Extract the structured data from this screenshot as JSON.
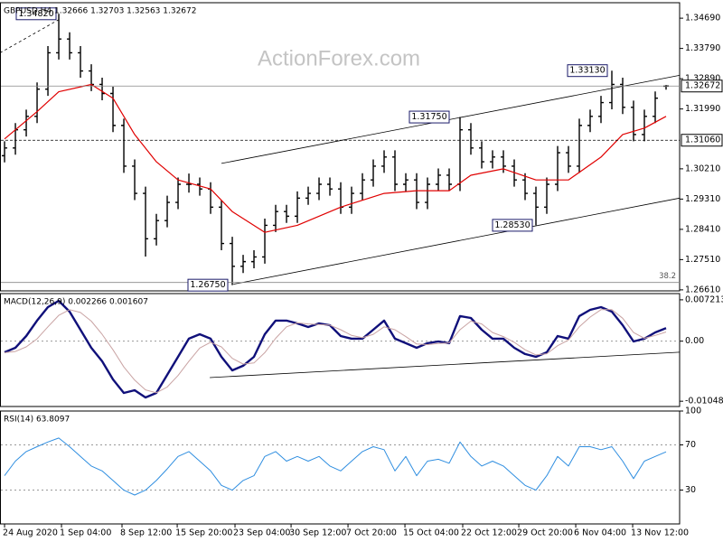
{
  "chart_data": [
    {
      "type": "ohlc",
      "title": "GBPUSD,H4  1.32666 1.32703 1.32563 1.32672",
      "color": "#000000",
      "xlim": [
        -0.42,
        62.25
      ],
      "ylim": [
        1.2658,
        1.3515
      ],
      "yticks": [
        {
          "value": 1.3469,
          "label": "1.34690"
        },
        {
          "value": 1.3379,
          "label": "1.33790"
        },
        {
          "value": 1.3289,
          "label": "1.32890"
        },
        {
          "value": 1.3199,
          "label": "1.31990"
        },
        {
          "value": 1.3021,
          "label": "1.30210"
        },
        {
          "value": 1.2931,
          "label": "1.29310"
        },
        {
          "value": 1.2841,
          "label": "1.28410"
        },
        {
          "value": 1.2751,
          "label": "1.27510"
        },
        {
          "value": 1.2661,
          "label": "1.26610"
        }
      ],
      "ohlc": [
        [
          1.306,
          1.3103,
          1.304,
          1.3083
        ],
        [
          1.3083,
          1.3157,
          1.3063,
          1.3137
        ],
        [
          1.3137,
          1.3197,
          1.3117,
          1.3177
        ],
        [
          1.3177,
          1.3278,
          1.3157,
          1.3258
        ],
        [
          1.3258,
          1.3386,
          1.3238,
          1.3366
        ],
        [
          1.3366,
          1.3482,
          1.3346,
          1.3407
        ],
        [
          1.3407,
          1.3427,
          1.3346,
          1.3366
        ],
        [
          1.3366,
          1.3386,
          1.3292,
          1.3312
        ],
        [
          1.3312,
          1.3332,
          1.3252,
          1.3272
        ],
        [
          1.3272,
          1.3292,
          1.3225,
          1.3245
        ],
        [
          1.3245,
          1.3265,
          1.313,
          1.315
        ],
        [
          1.315,
          1.317,
          1.3009,
          1.3029
        ],
        [
          1.3029,
          1.3049,
          1.2928,
          1.2948
        ],
        [
          1.2948,
          1.2968,
          1.276,
          1.2813
        ],
        [
          1.2813,
          1.2887,
          1.2793,
          1.2867
        ],
        [
          1.2867,
          1.2941,
          1.2847,
          1.2921
        ],
        [
          1.2921,
          1.2995,
          1.2901,
          1.2975
        ],
        [
          1.2975,
          1.3007,
          1.295,
          1.2975
        ],
        [
          1.2975,
          1.2995,
          1.2941,
          1.2961
        ],
        [
          1.2961,
          1.2981,
          1.2887,
          1.2907
        ],
        [
          1.2907,
          1.2927,
          1.2779,
          1.2799
        ],
        [
          1.2799,
          1.2819,
          1.2675,
          1.2731
        ],
        [
          1.2731,
          1.2765,
          1.2711,
          1.2745
        ],
        [
          1.2745,
          1.2779,
          1.2725,
          1.2759
        ],
        [
          1.2759,
          1.2873,
          1.2739,
          1.2853
        ],
        [
          1.2853,
          1.2914,
          1.2833,
          1.2894
        ],
        [
          1.2894,
          1.2914,
          1.286,
          1.288
        ],
        [
          1.288,
          1.2954,
          1.286,
          1.2934
        ],
        [
          1.2934,
          1.2968,
          1.2914,
          1.2948
        ],
        [
          1.2948,
          1.2995,
          1.2928,
          1.2975
        ],
        [
          1.2975,
          1.2995,
          1.2941,
          1.2961
        ],
        [
          1.2961,
          1.2981,
          1.2887,
          1.2907
        ],
        [
          1.2907,
          1.2968,
          1.2887,
          1.2948
        ],
        [
          1.2948,
          1.3008,
          1.2928,
          1.2988
        ],
        [
          1.2988,
          1.3049,
          1.2968,
          1.3029
        ],
        [
          1.3029,
          1.3076,
          1.3009,
          1.3056
        ],
        [
          1.3056,
          1.3076,
          1.2955,
          1.2975
        ],
        [
          1.2975,
          1.3008,
          1.2955,
          1.2988
        ],
        [
          1.2988,
          1.3008,
          1.2901,
          1.2921
        ],
        [
          1.2921,
          1.2995,
          1.2901,
          1.2975
        ],
        [
          1.2975,
          1.3022,
          1.2955,
          1.3002
        ],
        [
          1.3002,
          1.3022,
          1.2955,
          1.2975
        ],
        [
          1.2975,
          1.3175,
          1.2955,
          1.3137
        ],
        [
          1.3137,
          1.3157,
          1.3063,
          1.3083
        ],
        [
          1.3083,
          1.3103,
          1.3022,
          1.3042
        ],
        [
          1.3042,
          1.3076,
          1.3022,
          1.3056
        ],
        [
          1.3056,
          1.3076,
          1.3009,
          1.3029
        ],
        [
          1.3029,
          1.3049,
          1.2968,
          1.2988
        ],
        [
          1.2988,
          1.3008,
          1.2928,
          1.2948
        ],
        [
          1.2948,
          1.2968,
          1.2853,
          1.2907
        ],
        [
          1.2907,
          1.2995,
          1.2887,
          1.2975
        ],
        [
          1.2975,
          1.3089,
          1.2955,
          1.3069
        ],
        [
          1.3069,
          1.3089,
          1.3009,
          1.3029
        ],
        [
          1.3029,
          1.317,
          1.3009,
          1.315
        ],
        [
          1.315,
          1.3197,
          1.313,
          1.3177
        ],
        [
          1.3177,
          1.3238,
          1.3157,
          1.3218
        ],
        [
          1.3218,
          1.3313,
          1.3198,
          1.3272
        ],
        [
          1.3272,
          1.3292,
          1.3184,
          1.3204
        ],
        [
          1.3204,
          1.3224,
          1.3103,
          1.3123
        ],
        [
          1.3123,
          1.3197,
          1.3103,
          1.3177
        ],
        [
          1.3177,
          1.3251,
          1.3157,
          1.3231
        ],
        [
          1.32666,
          1.32703,
          1.32563,
          1.32672
        ]
      ],
      "series": [
        {
          "color": "#e00000",
          "width": 1.2,
          "x": [
            0,
            3,
            5,
            8,
            10,
            12,
            14,
            16,
            19,
            21,
            24,
            27,
            31,
            35,
            38,
            41,
            43,
            46,
            49,
            52,
            55,
            57,
            59,
            61
          ],
          "values": [
            1.311,
            1.3191,
            1.325,
            1.3272,
            1.3231,
            1.3123,
            1.3042,
            1.2988,
            1.2961,
            1.2894,
            1.2832,
            1.2853,
            1.2907,
            1.2948,
            1.2956,
            1.2956,
            1.3002,
            1.3021,
            1.2988,
            1.2988,
            1.3056,
            1.3123,
            1.3142,
            1.3177
          ]
        }
      ],
      "trendlines": [
        {
          "x": [
            20,
            62.25
          ],
          "values": [
            1.3037,
            1.3299
          ],
          "dash": false
        },
        {
          "x": [
            21.1,
            62.25
          ],
          "values": [
            1.2678,
            1.2934
          ],
          "dash": false
        },
        {
          "x": [
            -0.42,
            5.25
          ],
          "values": [
            1.3366,
            1.3469
          ],
          "dash": true
        }
      ],
      "levels": [
        {
          "value": 1.32672,
          "label": "1.32672",
          "line": "solid",
          "tag": true
        },
        {
          "value": 1.3106,
          "label": "1.31060",
          "line": "dashed",
          "tag": true
        },
        {
          "value": 1.2683,
          "label": "38.2",
          "line": "solid",
          "tag": false
        }
      ],
      "annotations": [
        {
          "value": 1.3482,
          "label": "1.34820"
        },
        {
          "value": 1.3175,
          "label": "1.31750"
        },
        {
          "value": 1.3313,
          "label": "1.33130"
        },
        {
          "value": 1.2853,
          "label": "1.28530"
        },
        {
          "value": 1.2675,
          "label": "1.26750"
        }
      ],
      "watermark": "ActionForex.com"
    },
    {
      "type": "macd",
      "title": "MACD(12,26,9) 0.002266 0.001607",
      "xlim": [
        -0.42,
        62.25
      ],
      "ylim": [
        -0.0114,
        0.0083
      ],
      "yticks": [
        0.007213,
        {
          "value": 0,
          "label": "0.00"
        },
        -0.01048
      ],
      "dotted_levels": [
        0
      ],
      "series": [
        {
          "color": "#10107a",
          "width": 2.4,
          "values": [
            -0.00194,
            -0.00115,
            0.0009,
            0.00358,
            0.00594,
            0.00704,
            0.00515,
            0.002,
            -0.00115,
            -0.00351,
            -0.00667,
            -0.00903,
            -0.00856,
            -0.00982,
            -0.00903,
            -0.00588,
            -0.00273,
            0.00043,
            0.00121,
            0.00043,
            -0.00273,
            -0.00509,
            -0.0043,
            -0.00273,
            0.00121,
            0.00358,
            0.00358,
            0.0031,
            0.00247,
            0.0031,
            0.00279,
            0.0009,
            0.00043,
            0.00043,
            0.002,
            0.00358,
            0.00043,
            -0.00036,
            -0.00115,
            -0.00036,
            -5e-05,
            -0.00036,
            0.00437,
            0.00405,
            0.002,
            0.00043,
            0.00043,
            -0.00115,
            -0.00225,
            -0.00273,
            -0.00194,
            0.0009,
            0.00043,
            0.00437,
            0.00547,
            0.00594,
            0.00515,
            0.00279,
            -5e-05,
            0.00043,
            0.00153,
            0.002266
          ]
        },
        {
          "color": "#c9a3a3",
          "width": 1,
          "values": [
            -0.002,
            -0.0018,
            -0.001,
            0.0004,
            0.0025,
            0.0045,
            0.0055,
            0.005,
            0.0035,
            0.0012,
            -0.0015,
            -0.0045,
            -0.0068,
            -0.0085,
            -0.009,
            -0.008,
            -0.006,
            -0.0035,
            -0.0012,
            -0.0002,
            -0.001,
            -0.003,
            -0.004,
            -0.0038,
            -0.002,
            0.0005,
            0.0025,
            0.0032,
            0.003,
            0.0029,
            0.0028,
            0.002,
            0.001,
            0.0006,
            0.0012,
            0.0025,
            0.002,
            0.0008,
            -0.0005,
            -0.0006,
            -0.0004,
            -0.0003,
            0.002,
            0.0035,
            0.003,
            0.0015,
            0.0008,
            -0.0002,
            -0.0015,
            -0.0024,
            -0.0022,
            -0.0008,
            0.0002,
            0.0025,
            0.0042,
            0.0055,
            0.0055,
            0.004,
            0.0015,
            0.0005,
            0.001,
            0.001607
          ]
        }
      ],
      "trendlines": [
        {
          "x": [
            18.92,
            62.25
          ],
          "values": [
            -0.00635,
            -0.00193
          ],
          "dash": false
        }
      ]
    },
    {
      "type": "line",
      "title": "RSI(14) 63.8097",
      "xlim": [
        -0.42,
        62.25
      ],
      "ylim": [
        0,
        100
      ],
      "yticks": [
        100,
        70,
        30
      ],
      "dotted_levels": [
        70,
        30
      ],
      "series": [
        {
          "color": "#2f8ee0",
          "width": 1,
          "values": [
            42.7,
            55.6,
            64.1,
            68.4,
            72.6,
            76.1,
            68.4,
            59.8,
            51.3,
            47.0,
            38.5,
            29.9,
            25.6,
            29.9,
            38.5,
            48.7,
            59.8,
            64.1,
            55.6,
            47.0,
            34.2,
            29.9,
            38.5,
            42.7,
            59.8,
            64.1,
            55.6,
            59.8,
            55.6,
            59.8,
            51.3,
            47.0,
            55.6,
            64.1,
            68.4,
            65.8,
            47.0,
            59.8,
            42.7,
            55.6,
            57.3,
            53.8,
            72.6,
            59.8,
            51.3,
            55.6,
            51.3,
            42.7,
            34.2,
            29.9,
            42.7,
            59.8,
            51.3,
            68.4,
            68.4,
            65.8,
            68.4,
            55.6,
            40.2,
            55.6,
            59.8,
            63.8097
          ]
        }
      ],
      "xticks": [
        {
          "value": 0,
          "label": "24 Aug 2020"
        },
        {
          "value": 5.25,
          "label": "1 Sep 04:00"
        },
        {
          "value": 10.83,
          "label": "8 Sep 12:00"
        },
        {
          "value": 15.92,
          "label": "15 Sep 20:00"
        },
        {
          "value": 21.25,
          "label": "23 Sep 04:00"
        },
        {
          "value": 26.42,
          "label": "30 Sep 12:00"
        },
        {
          "value": 31.67,
          "label": "7 Oct 20:00"
        },
        {
          "value": 36.92,
          "label": "15 Oct 04:00"
        },
        {
          "value": 42.25,
          "label": "22 Oct 12:00"
        },
        {
          "value": 47.42,
          "label": "29 Oct 20:00"
        },
        {
          "value": 52.67,
          "label": "6 Nov 04:00"
        },
        {
          "value": 57.92,
          "label": "13 Nov 12:00"
        }
      ]
    }
  ]
}
